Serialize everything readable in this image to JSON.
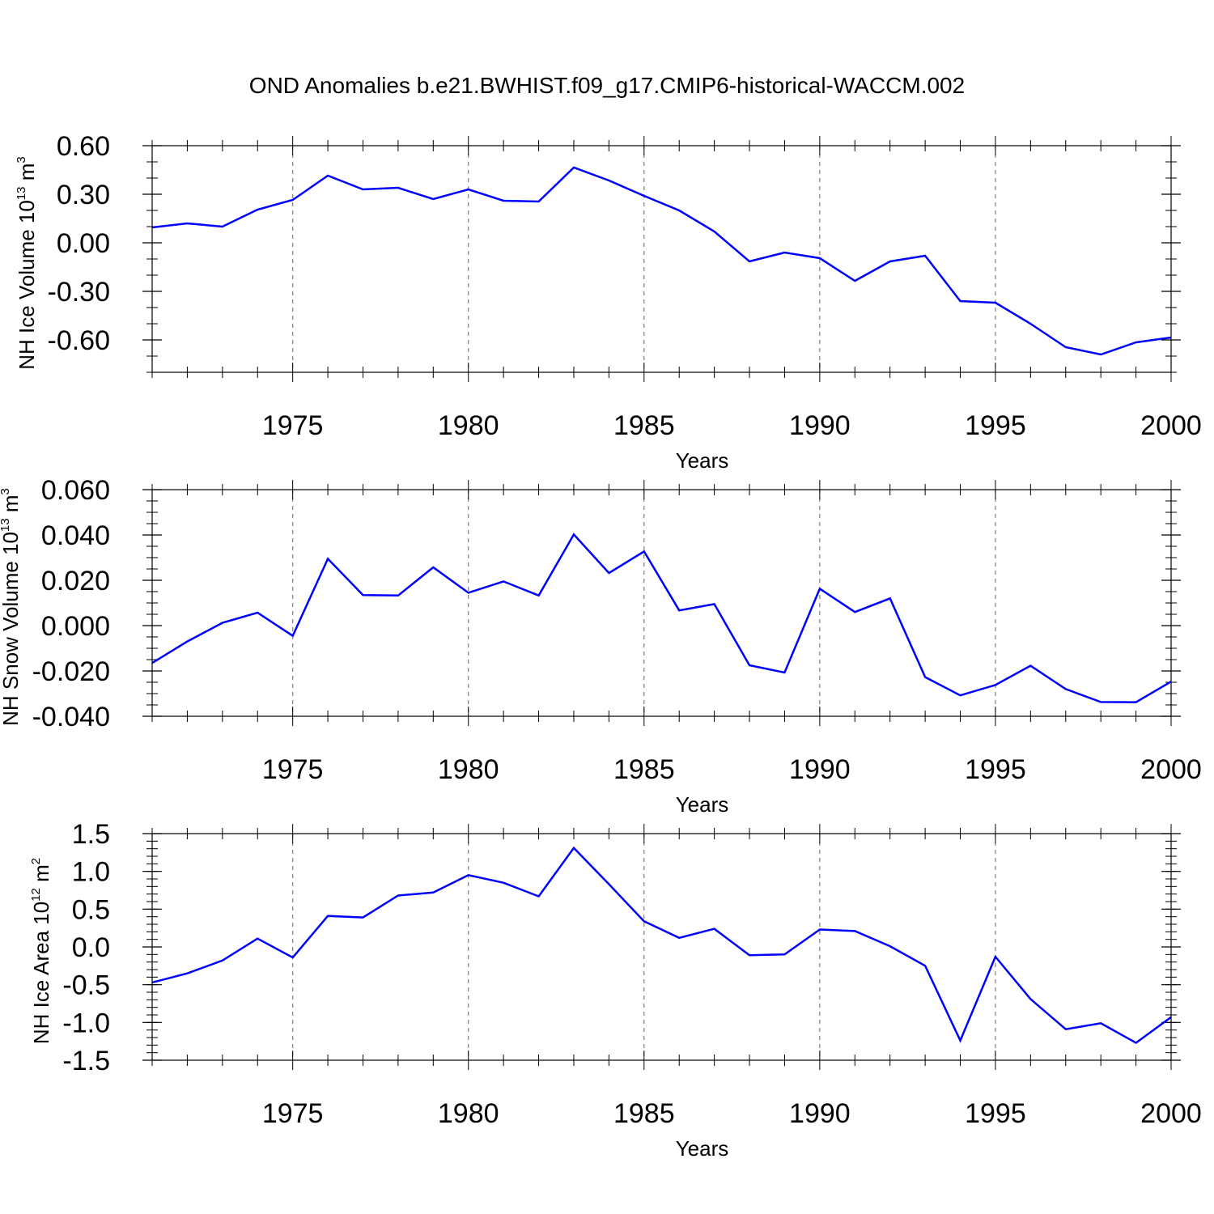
{
  "title": "OND Anomalies b.e21.BWHIST.f09_g17.CMIP6-historical-WACCM.002",
  "colors": {
    "line": "#0000ff",
    "grid": "#808080",
    "axes": "#000000"
  },
  "chart_data": [
    {
      "type": "line",
      "ylabel_text": "NH Ice Volume 10",
      "ylabel_exp1": "13",
      "ylabel_mid": " m",
      "ylabel_exp2": "3",
      "xlabel": "Years",
      "xlim": [
        1971,
        2000
      ],
      "ylim": [
        -0.8,
        0.6
      ],
      "yticks": [
        0.6,
        0.3,
        0.0,
        -0.3,
        -0.6
      ],
      "ytick_labels": [
        "0.60",
        "0.30",
        "0.00",
        "-0.30",
        "-0.60"
      ],
      "yminor_step": 0.1,
      "xticks": [
        1975,
        1980,
        1985,
        1990,
        1995,
        2000
      ],
      "xtick_labels": [
        "1975",
        "1980",
        "1985",
        "1990",
        "1995",
        "2000"
      ],
      "grid": "x-dashed",
      "series": [
        {
          "x": [
            1971,
            1972,
            1973,
            1974,
            1975,
            1976,
            1977,
            1978,
            1979,
            1980,
            1981,
            1982,
            1983,
            1984,
            1985,
            1986,
            1987,
            1988,
            1989,
            1990,
            1991,
            1992,
            1993,
            1994,
            1995,
            1996,
            1997,
            1998,
            1999,
            2000
          ],
          "y": [
            0.095,
            0.12,
            0.1,
            0.205,
            0.265,
            0.415,
            0.33,
            0.34,
            0.27,
            0.33,
            0.26,
            0.255,
            0.465,
            0.385,
            0.29,
            0.2,
            0.07,
            -0.115,
            -0.06,
            -0.095,
            -0.235,
            -0.115,
            -0.08,
            -0.36,
            -0.37,
            -0.5,
            -0.645,
            -0.69,
            -0.615,
            -0.585
          ]
        }
      ]
    },
    {
      "type": "line",
      "ylabel_text": "NH Snow Volume 10",
      "ylabel_exp1": "13",
      "ylabel_mid": " m",
      "ylabel_exp2": "3",
      "xlabel": "Years",
      "xlim": [
        1971,
        2000
      ],
      "ylim": [
        -0.04,
        0.06
      ],
      "yticks": [
        0.06,
        0.04,
        0.02,
        0.0,
        -0.02,
        -0.04
      ],
      "ytick_labels": [
        "0.060",
        "0.040",
        "0.020",
        "0.000",
        "-0.020",
        "-0.040"
      ],
      "yminor_step": 0.005,
      "xticks": [
        1975,
        1980,
        1985,
        1990,
        1995,
        2000
      ],
      "xtick_labels": [
        "1975",
        "1980",
        "1985",
        "1990",
        "1995",
        "2000"
      ],
      "grid": "x-dashed",
      "series": [
        {
          "x": [
            1971,
            1972,
            1973,
            1974,
            1975,
            1976,
            1977,
            1978,
            1979,
            1980,
            1981,
            1982,
            1983,
            1984,
            1985,
            1986,
            1987,
            1988,
            1989,
            1990,
            1991,
            1992,
            1993,
            1994,
            1995,
            1996,
            1997,
            1998,
            1999,
            2000
          ],
          "y": [
            -0.0165,
            -0.007,
            0.0012,
            0.0057,
            -0.0045,
            0.0295,
            0.0135,
            0.0133,
            0.0257,
            0.0145,
            0.0195,
            0.0133,
            0.0402,
            0.0232,
            0.0327,
            0.0067,
            0.0095,
            -0.0175,
            -0.0207,
            0.0163,
            0.006,
            0.012,
            -0.0227,
            -0.0308,
            -0.0262,
            -0.0177,
            -0.028,
            -0.0337,
            -0.0338,
            -0.0247
          ]
        }
      ]
    },
    {
      "type": "line",
      "ylabel_text": "NH Ice Area 10",
      "ylabel_exp1": "12",
      "ylabel_mid": " m",
      "ylabel_exp2": "2",
      "xlabel": "Years",
      "xlim": [
        1971,
        2000
      ],
      "ylim": [
        -1.5,
        1.5
      ],
      "yticks": [
        1.5,
        1.0,
        0.5,
        0.0,
        -0.5,
        -1.0,
        -1.5
      ],
      "ytick_labels": [
        "1.5",
        "1.0",
        "0.5",
        "0.0",
        "-0.5",
        "-1.0",
        "-1.5"
      ],
      "yminor_step": 0.1,
      "xticks": [
        1975,
        1980,
        1985,
        1990,
        1995,
        2000
      ],
      "xtick_labels": [
        "1975",
        "1980",
        "1985",
        "1990",
        "1995",
        "2000"
      ],
      "grid": "x-dashed",
      "series": [
        {
          "x": [
            1971,
            1972,
            1973,
            1974,
            1975,
            1976,
            1977,
            1978,
            1979,
            1980,
            1981,
            1982,
            1983,
            1984,
            1985,
            1986,
            1987,
            1988,
            1989,
            1990,
            1991,
            1992,
            1993,
            1994,
            1995,
            1996,
            1997,
            1998,
            1999,
            2000
          ],
          "y": [
            -0.47,
            -0.35,
            -0.18,
            0.11,
            -0.14,
            0.41,
            0.39,
            0.68,
            0.72,
            0.95,
            0.85,
            0.67,
            1.31,
            0.83,
            0.34,
            0.12,
            0.24,
            -0.11,
            -0.1,
            0.23,
            0.21,
            0.01,
            -0.25,
            -1.24,
            -0.13,
            -0.69,
            -1.09,
            -1.01,
            -1.27,
            -0.93
          ]
        }
      ]
    }
  ]
}
